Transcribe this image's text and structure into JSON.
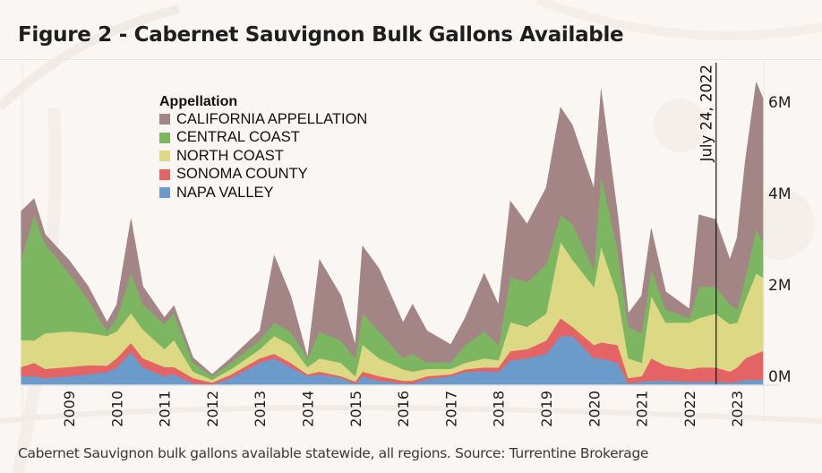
{
  "title": "Figure 2 - Cabernet Sauvignon Bulk Gallons Available",
  "caption": "Cabernet Sauvignon bulk gallons available statewide, all regions. Source: Turrentine Brokerage",
  "chart_data": {
    "type": "area",
    "stacked": true,
    "title": "Figure 2 - Cabernet Sauvignon Bulk Gallons Available",
    "xlabel": "",
    "ylabel": "",
    "x_unit": "year (decimal)",
    "y_unit": "gallons (millions)",
    "xlim": [
      2008.0,
      2023.54
    ],
    "ylim": [
      0,
      6.5
    ],
    "y_ticks": [
      0,
      2,
      4,
      6
    ],
    "y_tick_labels": [
      "0M",
      "2M",
      "4M",
      "6M"
    ],
    "y_axis_position": "right",
    "x_ticks": [
      2009,
      2010,
      2011,
      2012,
      2013,
      2014,
      2015,
      2016,
      2017,
      2018,
      2019,
      2020,
      2021,
      2022,
      2023
    ],
    "x_tick_labels": [
      "2009",
      "2010",
      "2011",
      "2012",
      "2013",
      "2014",
      "2015",
      "2016",
      "2017",
      "2018",
      "2019",
      "2020",
      "2021",
      "2022",
      "2023"
    ],
    "grid": false,
    "legend": {
      "title": "Appellation",
      "placement": "top-left",
      "entries": [
        "CALIFORNIA APPELLATION",
        "CENTRAL COAST",
        "NORTH COAST",
        "SONOMA COUNTY",
        "NAPA VALLEY"
      ]
    },
    "annotations": [
      {
        "type": "vertical-line",
        "x": 2022.56,
        "label": "July 24, 2022"
      }
    ],
    "x": [
      2008.0,
      2008.27,
      2008.5,
      2009.0,
      2009.4,
      2009.8,
      2010.0,
      2010.3,
      2010.55,
      2011.0,
      2011.2,
      2011.6,
      2012.0,
      2012.4,
      2013.0,
      2013.3,
      2013.65,
      2014.0,
      2014.25,
      2014.7,
      2015.0,
      2015.15,
      2015.5,
      2016.0,
      2016.2,
      2016.5,
      2017.0,
      2017.3,
      2017.7,
      2018.0,
      2018.25,
      2018.6,
      2019.0,
      2019.3,
      2019.55,
      2020.0,
      2020.15,
      2020.5,
      2020.72,
      2021.0,
      2021.2,
      2021.5,
      2022.0,
      2022.2,
      2022.55,
      2022.85,
      2023.0,
      2023.17,
      2023.4,
      2023.54
    ],
    "series": [
      {
        "name": "NAPA VALLEY",
        "color": "#6b9bcb",
        "values": [
          0.18,
          0.18,
          0.14,
          0.18,
          0.22,
          0.27,
          0.37,
          0.71,
          0.37,
          0.18,
          0.22,
          0.02,
          0.0,
          0.14,
          0.47,
          0.57,
          0.37,
          0.18,
          0.22,
          0.14,
          0.02,
          0.18,
          0.08,
          0.02,
          0.02,
          0.12,
          0.18,
          0.27,
          0.29,
          0.27,
          0.53,
          0.57,
          0.67,
          1.06,
          1.06,
          0.57,
          0.57,
          0.47,
          0.02,
          0.06,
          0.08,
          0.08,
          0.06,
          0.06,
          0.06,
          0.04,
          0.06,
          0.1,
          0.1,
          0.12
        ]
      },
      {
        "name": "SONOMA COUNTY",
        "color": "#e46466",
        "values": [
          0.2,
          0.29,
          0.2,
          0.2,
          0.2,
          0.14,
          0.2,
          0.2,
          0.2,
          0.2,
          0.16,
          0.12,
          0.04,
          0.08,
          0.1,
          0.1,
          0.1,
          0.04,
          0.06,
          0.04,
          0.04,
          0.1,
          0.1,
          0.06,
          0.06,
          0.06,
          0.04,
          0.06,
          0.08,
          0.1,
          0.2,
          0.2,
          0.29,
          0.39,
          0.2,
          0.29,
          0.35,
          0.39,
          0.12,
          0.12,
          0.49,
          0.33,
          0.27,
          0.31,
          0.31,
          0.24,
          0.31,
          0.47,
          0.57,
          0.61
        ]
      },
      {
        "name": "NORTH COAST",
        "color": "#dcd884",
        "values": [
          0.59,
          0.49,
          0.78,
          0.78,
          0.71,
          0.65,
          0.59,
          0.65,
          0.63,
          0.39,
          0.59,
          0.14,
          0.06,
          0.12,
          0.2,
          0.39,
          0.39,
          0.16,
          0.29,
          0.29,
          0.12,
          0.59,
          0.39,
          0.25,
          0.2,
          0.16,
          0.12,
          0.14,
          0.2,
          0.16,
          0.63,
          0.49,
          0.59,
          1.67,
          1.47,
          1.27,
          2.1,
          1.08,
          0.43,
          0.29,
          1.37,
          0.94,
          1.02,
          1.08,
          1.18,
          1.04,
          0.98,
          1.27,
          1.76,
          1.61
        ]
      },
      {
        "name": "CENTRAL COAST",
        "color": "#7cb661",
        "values": [
          1.76,
          2.75,
          1.96,
          1.27,
          0.73,
          0.1,
          0.29,
          0.88,
          0.55,
          0.55,
          0.59,
          0.2,
          0.08,
          0.14,
          0.2,
          0.29,
          0.29,
          0.2,
          0.59,
          0.49,
          0.39,
          0.69,
          0.59,
          0.24,
          0.39,
          0.14,
          0.14,
          0.39,
          0.59,
          0.33,
          0.98,
          0.98,
          1.08,
          0.59,
          0.78,
          0.39,
          1.57,
          0.98,
          0.69,
          0.65,
          0.59,
          0.29,
          0.1,
          0.69,
          0.59,
          0.43,
          0.29,
          0.49,
          0.98,
          0.78
        ]
      },
      {
        "name": "CALIFORNIA APPELLATION",
        "color": "#a38585",
        "values": [
          1.06,
          0.35,
          0.2,
          0.29,
          0.29,
          0.2,
          0.29,
          1.18,
          0.39,
          0.14,
          0.16,
          0.1,
          0.04,
          0.1,
          0.2,
          1.47,
          0.78,
          0.0,
          1.57,
          0.98,
          0.29,
          1.47,
          1.37,
          0.78,
          1.08,
          0.69,
          0.39,
          0.59,
          1.27,
          0.88,
          1.67,
          1.27,
          1.67,
          2.35,
          2.16,
          1.76,
          1.86,
          0.78,
          0.29,
          0.82,
          0.88,
          0.39,
          0.2,
          1.57,
          1.47,
          0.98,
          1.57,
          2.55,
          3.2,
          3.14
        ]
      }
    ]
  }
}
